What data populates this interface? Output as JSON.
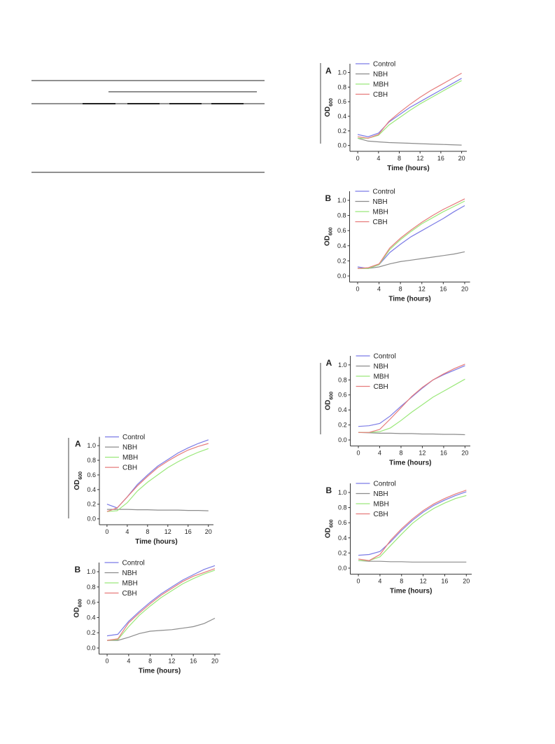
{
  "chart_data": [
    {
      "type": "line",
      "panel": "A",
      "xlabel": "Time (hours)",
      "ylabel": "OD",
      "ylabel_sub": "600",
      "x": [
        0,
        2,
        4,
        6,
        8,
        10,
        12,
        14,
        16,
        18,
        20
      ],
      "series": [
        {
          "name": "Control",
          "color": "#7b7be6",
          "values": [
            0.15,
            0.12,
            0.17,
            0.32,
            0.42,
            0.52,
            0.6,
            0.68,
            0.76,
            0.84,
            0.92
          ]
        },
        {
          "name": "NBH",
          "color": "#8c8c8c",
          "values": [
            0.1,
            0.06,
            0.05,
            0.04,
            0.035,
            0.03,
            0.025,
            0.02,
            0.015,
            0.01,
            0.005
          ]
        },
        {
          "name": "MBH",
          "color": "#9be87a",
          "values": [
            0.1,
            0.1,
            0.14,
            0.28,
            0.38,
            0.48,
            0.57,
            0.65,
            0.73,
            0.81,
            0.89
          ]
        },
        {
          "name": "CBH",
          "color": "#e67b7b",
          "values": [
            0.12,
            0.1,
            0.15,
            0.33,
            0.45,
            0.56,
            0.66,
            0.75,
            0.83,
            0.91,
            0.99
          ]
        }
      ],
      "xlim": [
        -1.5,
        21
      ],
      "ylim": [
        -0.08,
        1.12
      ],
      "xticks": [
        0,
        4,
        8,
        12,
        16,
        20
      ],
      "yticks": [
        {
          "value": 0,
          "label": "0.0"
        },
        0.2,
        0.4,
        0.6,
        0.8,
        {
          "value": 1,
          "label": "1.0"
        }
      ],
      "legend": "upper left"
    },
    {
      "type": "line",
      "panel": "B",
      "xlabel": "Time (hours)",
      "ylabel": "OD",
      "ylabel_sub": "600",
      "x": [
        0,
        2,
        4,
        6,
        8,
        10,
        12,
        14,
        16,
        18,
        20
      ],
      "series": [
        {
          "name": "Control",
          "color": "#7b7be6",
          "values": [
            0.12,
            0.1,
            0.15,
            0.31,
            0.42,
            0.52,
            0.6,
            0.68,
            0.76,
            0.85,
            0.93
          ]
        },
        {
          "name": "NBH",
          "color": "#8c8c8c",
          "values": [
            0.1,
            0.1,
            0.12,
            0.16,
            0.19,
            0.21,
            0.23,
            0.25,
            0.27,
            0.29,
            0.32
          ]
        },
        {
          "name": "MBH",
          "color": "#9be87a",
          "values": [
            0.1,
            0.1,
            0.15,
            0.35,
            0.48,
            0.59,
            0.69,
            0.77,
            0.85,
            0.92,
            0.99
          ]
        },
        {
          "name": "CBH",
          "color": "#e67b7b",
          "values": [
            0.1,
            0.11,
            0.16,
            0.37,
            0.5,
            0.61,
            0.71,
            0.8,
            0.88,
            0.95,
            1.02
          ]
        }
      ],
      "xlim": [
        -1.5,
        21
      ],
      "ylim": [
        -0.08,
        1.12
      ],
      "xticks": [
        0,
        4,
        8,
        12,
        16,
        20
      ],
      "yticks": [
        {
          "value": 0,
          "label": "0.0"
        },
        0.2,
        0.4,
        0.6,
        0.8,
        {
          "value": 1,
          "label": "1.0"
        }
      ],
      "legend": "upper left"
    },
    {
      "type": "line",
      "panel": "A",
      "xlabel": "Time (hours)",
      "ylabel": "OD",
      "ylabel_sub": "600",
      "x": [
        0,
        2,
        4,
        6,
        8,
        10,
        12,
        14,
        16,
        18,
        20
      ],
      "series": [
        {
          "name": "Control",
          "color": "#7b7be6",
          "values": [
            0.2,
            0.15,
            0.3,
            0.47,
            0.6,
            0.72,
            0.81,
            0.9,
            0.97,
            1.03,
            1.08
          ]
        },
        {
          "name": "NBH",
          "color": "#8c8c8c",
          "values": [
            0.13,
            0.13,
            0.13,
            0.125,
            0.125,
            0.12,
            0.12,
            0.12,
            0.115,
            0.115,
            0.11
          ]
        },
        {
          "name": "MBH",
          "color": "#9be87a",
          "values": [
            0.1,
            0.11,
            0.22,
            0.38,
            0.5,
            0.6,
            0.7,
            0.78,
            0.85,
            0.91,
            0.96
          ]
        },
        {
          "name": "CBH",
          "color": "#e67b7b",
          "values": [
            0.1,
            0.15,
            0.3,
            0.45,
            0.58,
            0.7,
            0.79,
            0.87,
            0.94,
            0.99,
            1.03
          ]
        }
      ],
      "xlim": [
        -1.5,
        21
      ],
      "ylim": [
        -0.08,
        1.12
      ],
      "xticks": [
        0,
        4,
        8,
        12,
        16,
        20
      ],
      "yticks": [
        {
          "value": 0,
          "label": "0.0"
        },
        0.2,
        0.4,
        0.6,
        0.8,
        {
          "value": 1,
          "label": "1.0"
        }
      ],
      "legend": "upper left"
    },
    {
      "type": "line",
      "panel": "B",
      "xlabel": "Time (hours)",
      "ylabel": "OD",
      "ylabel_sub": "600",
      "x": [
        0,
        2,
        4,
        6,
        8,
        10,
        12,
        14,
        16,
        18,
        20
      ],
      "series": [
        {
          "name": "Control",
          "color": "#7b7be6",
          "values": [
            0.16,
            0.18,
            0.35,
            0.48,
            0.6,
            0.71,
            0.8,
            0.89,
            0.96,
            1.03,
            1.08
          ]
        },
        {
          "name": "NBH",
          "color": "#8c8c8c",
          "values": [
            0.1,
            0.1,
            0.14,
            0.19,
            0.22,
            0.23,
            0.24,
            0.26,
            0.28,
            0.32,
            0.39
          ]
        },
        {
          "name": "MBH",
          "color": "#9be87a",
          "values": [
            0.1,
            0.11,
            0.28,
            0.43,
            0.55,
            0.66,
            0.75,
            0.84,
            0.91,
            0.97,
            1.02
          ]
        },
        {
          "name": "CBH",
          "color": "#e67b7b",
          "values": [
            0.1,
            0.12,
            0.33,
            0.46,
            0.58,
            0.69,
            0.78,
            0.87,
            0.94,
            0.99,
            1.04
          ]
        }
      ],
      "xlim": [
        -1.5,
        21
      ],
      "ylim": [
        -0.08,
        1.12
      ],
      "xticks": [
        0,
        4,
        8,
        12,
        16,
        20
      ],
      "yticks": [
        {
          "value": 0,
          "label": "0.0"
        },
        0.2,
        0.4,
        0.6,
        0.8,
        {
          "value": 1,
          "label": "1.0"
        }
      ],
      "legend": "upper left"
    },
    {
      "type": "line",
      "panel": "A",
      "xlabel": "Time (hours)",
      "ylabel": "OD",
      "ylabel_sub": "600",
      "x": [
        0,
        2,
        4,
        6,
        8,
        10,
        12,
        14,
        16,
        18,
        20
      ],
      "series": [
        {
          "name": "Control",
          "color": "#7b7be6",
          "values": [
            0.18,
            0.19,
            0.22,
            0.32,
            0.45,
            0.57,
            0.69,
            0.8,
            0.87,
            0.93,
            0.99
          ]
        },
        {
          "name": "NBH",
          "color": "#8c8c8c",
          "values": [
            0.1,
            0.095,
            0.09,
            0.09,
            0.085,
            0.085,
            0.08,
            0.08,
            0.075,
            0.075,
            0.07
          ]
        },
        {
          "name": "MBH",
          "color": "#9be87a",
          "values": [
            0.1,
            0.1,
            0.11,
            0.16,
            0.26,
            0.37,
            0.47,
            0.57,
            0.65,
            0.73,
            0.81
          ]
        },
        {
          "name": "CBH",
          "color": "#e67b7b",
          "values": [
            0.1,
            0.1,
            0.14,
            0.28,
            0.43,
            0.58,
            0.7,
            0.8,
            0.88,
            0.95,
            1.01
          ]
        }
      ],
      "xlim": [
        -1.5,
        21
      ],
      "ylim": [
        -0.08,
        1.12
      ],
      "xticks": [
        0,
        4,
        8,
        12,
        16,
        20
      ],
      "yticks": [
        {
          "value": 0,
          "label": "0.0"
        },
        0.2,
        0.4,
        0.6,
        0.8,
        {
          "value": 1,
          "label": "1.0"
        }
      ],
      "legend": "upper left"
    },
    {
      "type": "line",
      "panel": "B",
      "xlabel": "Time (hours)",
      "ylabel": "OD",
      "ylabel_sub": "600",
      "x": [
        0,
        2,
        4,
        6,
        8,
        10,
        12,
        14,
        16,
        18,
        20
      ],
      "series": [
        {
          "name": "Control",
          "color": "#7b7be6",
          "values": [
            0.17,
            0.18,
            0.22,
            0.35,
            0.5,
            0.63,
            0.74,
            0.83,
            0.9,
            0.96,
            1.01
          ]
        },
        {
          "name": "NBH",
          "color": "#8c8c8c",
          "values": [
            0.1,
            0.09,
            0.09,
            0.085,
            0.085,
            0.08,
            0.08,
            0.08,
            0.08,
            0.08,
            0.08
          ]
        },
        {
          "name": "MBH",
          "color": "#9be87a",
          "values": [
            0.1,
            0.1,
            0.15,
            0.3,
            0.45,
            0.59,
            0.7,
            0.79,
            0.86,
            0.92,
            0.96
          ]
        },
        {
          "name": "CBH",
          "color": "#e67b7b",
          "values": [
            0.12,
            0.1,
            0.18,
            0.37,
            0.52,
            0.65,
            0.76,
            0.85,
            0.92,
            0.98,
            1.03
          ]
        }
      ],
      "xlim": [
        -1.5,
        21
      ],
      "ylim": [
        -0.08,
        1.12
      ],
      "xticks": [
        0,
        4,
        8,
        12,
        16,
        20
      ],
      "yticks": [
        {
          "value": 0,
          "label": "0.0"
        },
        0.2,
        0.4,
        0.6,
        0.8,
        {
          "value": 1,
          "label": "1.0"
        }
      ],
      "legend": "upper left"
    }
  ]
}
